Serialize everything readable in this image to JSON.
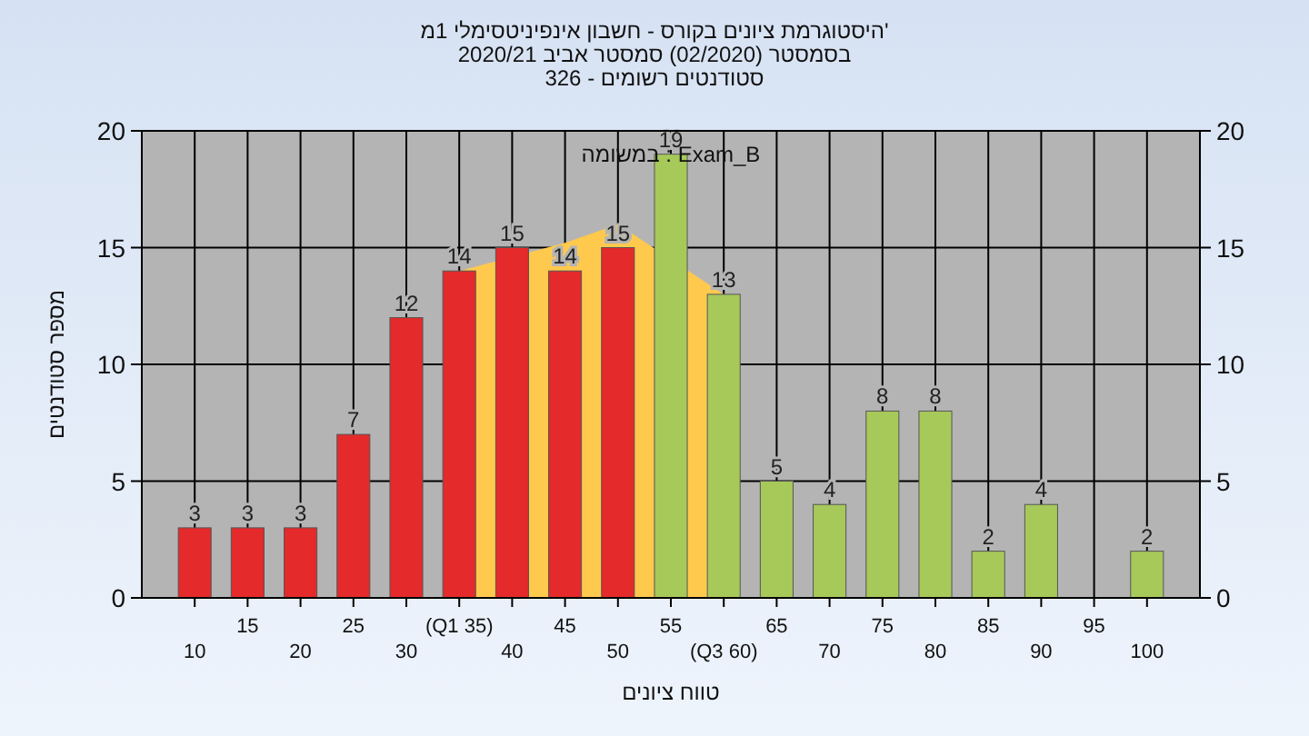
{
  "chart_data": {
    "type": "bar",
    "title": "'היסטוגרמת ציונים בקורס - חשבון אינפיניטסימלי 1מ",
    "subtitle": "בסמסטר  (02/2020)  סמסטר אביב 2020/21\nסטודנטים רשומים - 326",
    "xlabel": "טווח ציונים",
    "ylabel": "מספר סטודנטים",
    "categories": [
      "10",
      "15",
      "20",
      "25",
      "30",
      "(Q1 35)",
      "40",
      "45",
      "50",
      "55",
      "(Q3 60)",
      "65",
      "70",
      "75",
      "80",
      "85",
      "90",
      "95",
      "100"
    ],
    "series": [
      {
        "type": "area",
        "color": "#ffc94d",
        "values": [
          null,
          null,
          null,
          null,
          null,
          14,
          null,
          15.2,
          16,
          null,
          13,
          null,
          null,
          null,
          null,
          null,
          null,
          null,
          null
        ]
      },
      {
        "colors": [
          "#e42a2a",
          "#e42a2a",
          "#e42a2a",
          "#e42a2a",
          "#e42a2a",
          "#e42a2a",
          "#e42a2a",
          "#e42a2a",
          "#e42a2a",
          "#a6c95a",
          "#a6c95a",
          "#a6c95a",
          "#a6c95a",
          "#a6c95a",
          "#a6c95a",
          "#a6c95a",
          "#a6c95a",
          "#a6c95a",
          "#a6c95a"
        ],
        "values": [
          3,
          3,
          3,
          7,
          12,
          14,
          15,
          14,
          15,
          19,
          13,
          5,
          4,
          8,
          8,
          2,
          4,
          null,
          2
        ],
        "value_labels": [
          "3",
          "3",
          "3",
          "7",
          "12",
          "14",
          "15",
          "14",
          "15",
          "19",
          "13",
          "5",
          "4",
          "8",
          "8",
          "2",
          "4",
          null,
          "2"
        ]
      }
    ],
    "annotations": [
      "במשומה : Exam_B"
    ],
    "ylim": [
      0,
      20
    ],
    "yticks": [
      0,
      5,
      10,
      15,
      20
    ],
    "y2lim": [
      0,
      20
    ],
    "y2ticks": [
      0,
      5,
      10,
      15,
      20
    ],
    "grid": true
  }
}
